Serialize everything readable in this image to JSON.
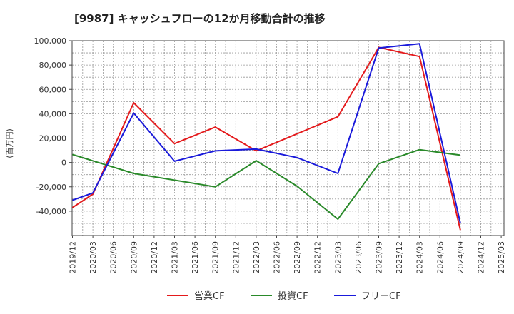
{
  "chart_data": {
    "type": "line",
    "title": "[9987]  キャッシュフローの12か月移動合計の推移",
    "ylabel": "(百万円)",
    "xlabel": "",
    "ylim": [
      -60000,
      100000
    ],
    "yticks": [
      100000,
      80000,
      60000,
      40000,
      20000,
      0,
      -20000,
      -40000
    ],
    "ytick_labels": [
      "100,000",
      "80,000",
      "60,000",
      "40,000",
      "20,000",
      "0",
      "-20,000",
      "-40,000"
    ],
    "x_ticks": [
      "2019/12",
      "2020/03",
      "2020/06",
      "2020/09",
      "2020/12",
      "2021/03",
      "2021/06",
      "2021/09",
      "2021/12",
      "2022/03",
      "2022/06",
      "2022/09",
      "2022/12",
      "2023/03",
      "2023/06",
      "2023/09",
      "2023/12",
      "2024/03",
      "2024/06",
      "2024/09",
      "2024/12",
      "2025/03"
    ],
    "grid": true,
    "legend_position": "bottom-center",
    "series": [
      {
        "name": "営業CF",
        "color": "#e41a1c",
        "points": [
          {
            "x": "2019/12",
            "y": -37000
          },
          {
            "x": "2020/03",
            "y": -26000
          },
          {
            "x": "2020/09",
            "y": 49000
          },
          {
            "x": "2021/03",
            "y": 15500
          },
          {
            "x": "2021/09",
            "y": 29000
          },
          {
            "x": "2022/03",
            "y": 9500
          },
          {
            "x": "2023/03",
            "y": 37500
          },
          {
            "x": "2023/09",
            "y": 94500
          },
          {
            "x": "2024/03",
            "y": 87000
          },
          {
            "x": "2024/09",
            "y": -55500
          }
        ]
      },
      {
        "name": "投資CF",
        "color": "#2a8a2a",
        "points": [
          {
            "x": "2019/12",
            "y": 6500
          },
          {
            "x": "2020/09",
            "y": -9000
          },
          {
            "x": "2021/09",
            "y": -20000
          },
          {
            "x": "2022/03",
            "y": 1500
          },
          {
            "x": "2022/09",
            "y": -19500
          },
          {
            "x": "2023/03",
            "y": -46500
          },
          {
            "x": "2023/09",
            "y": -1000
          },
          {
            "x": "2024/03",
            "y": 10500
          },
          {
            "x": "2024/09",
            "y": 6000
          }
        ]
      },
      {
        "name": "フリーCF",
        "color": "#1a1adb",
        "points": [
          {
            "x": "2019/12",
            "y": -31000
          },
          {
            "x": "2020/03",
            "y": -25000
          },
          {
            "x": "2020/09",
            "y": 40500
          },
          {
            "x": "2021/03",
            "y": 1000
          },
          {
            "x": "2021/09",
            "y": 9500
          },
          {
            "x": "2022/03",
            "y": 11000
          },
          {
            "x": "2022/09",
            "y": 4000
          },
          {
            "x": "2023/03",
            "y": -9000
          },
          {
            "x": "2023/09",
            "y": 94000
          },
          {
            "x": "2024/03",
            "y": 97500
          },
          {
            "x": "2024/09",
            "y": -50000
          }
        ]
      }
    ]
  }
}
